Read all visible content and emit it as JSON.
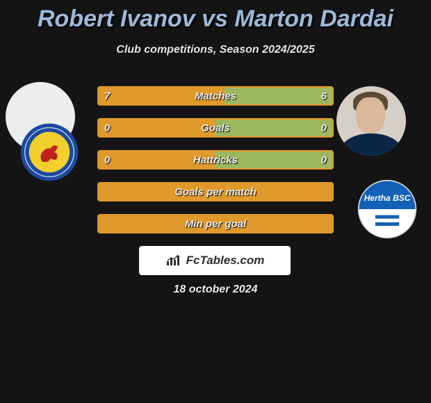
{
  "title": "Robert Ivanov vs Marton Dardai",
  "subtitle": "Club competitions, Season 2024/2025",
  "date": "18 october 2024",
  "brand": "FcTables.com",
  "colors": {
    "left_fill": "#e09a2b",
    "right_fill": "#9cb85f",
    "row_border": "#e09a2b",
    "row_bg": "#2c2c2d",
    "title": "#9cb9d8"
  },
  "club_left": {
    "ring": "#1b4aa0",
    "disc": "#f2cf2c",
    "lion": "#c02020",
    "text_ring": "#ffffff"
  },
  "club_right": {
    "ring_top": "#1161b6",
    "ring_bottom": "#ffffff",
    "flag_stripes": [
      "#1161b6",
      "#ffffff",
      "#1161b6",
      "#ffffff"
    ],
    "text": "Hertha BSC",
    "text_color": "#1161b6"
  },
  "rows": [
    {
      "label": "Matches",
      "left": "7",
      "right": "6",
      "left_pct": 54,
      "right_pct": 46
    },
    {
      "label": "Goals",
      "left": "0",
      "right": "0",
      "left_pct": 50,
      "right_pct": 50
    },
    {
      "label": "Hattricks",
      "left": "0",
      "right": "0",
      "left_pct": 50,
      "right_pct": 50
    },
    {
      "label": "Goals per match",
      "left": "",
      "right": "",
      "left_pct": 100,
      "right_pct": 0
    },
    {
      "label": "Min per goal",
      "left": "",
      "right": "",
      "left_pct": 100,
      "right_pct": 0
    }
  ]
}
